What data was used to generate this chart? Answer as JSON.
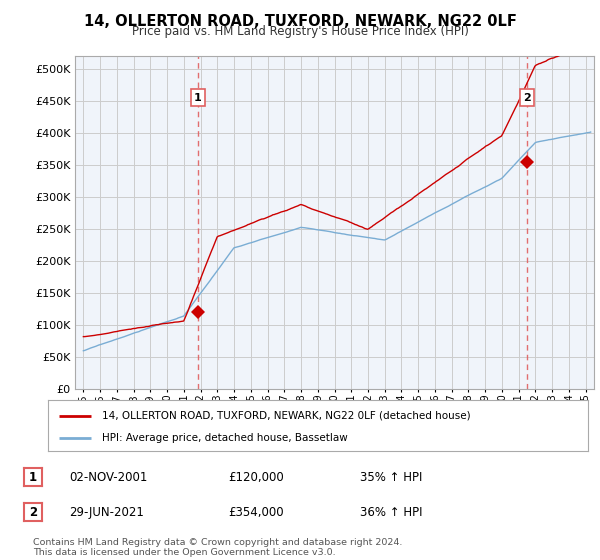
{
  "title": "14, OLLERTON ROAD, TUXFORD, NEWARK, NG22 0LF",
  "subtitle": "Price paid vs. HM Land Registry's House Price Index (HPI)",
  "legend_label_red": "14, OLLERTON ROAD, TUXFORD, NEWARK, NG22 0LF (detached house)",
  "legend_label_blue": "HPI: Average price, detached house, Bassetlaw",
  "annotation1_date": "02-NOV-2001",
  "annotation1_price": "£120,000",
  "annotation1_hpi": "35% ↑ HPI",
  "annotation2_date": "29-JUN-2021",
  "annotation2_price": "£354,000",
  "annotation2_hpi": "36% ↑ HPI",
  "footnote": "Contains HM Land Registry data © Crown copyright and database right 2024.\nThis data is licensed under the Open Government Licence v3.0.",
  "sale1_year": 2001.84,
  "sale1_value": 120000,
  "sale2_year": 2021.49,
  "sale2_value": 354000,
  "red_color": "#cc0000",
  "blue_color": "#7aadd4",
  "vline_color": "#e06060",
  "background_color": "#ffffff",
  "plot_bg_color": "#f0f4fa",
  "grid_color": "#cccccc",
  "ylim": [
    0,
    520000
  ],
  "xlim_start": 1994.5,
  "xlim_end": 2025.5
}
